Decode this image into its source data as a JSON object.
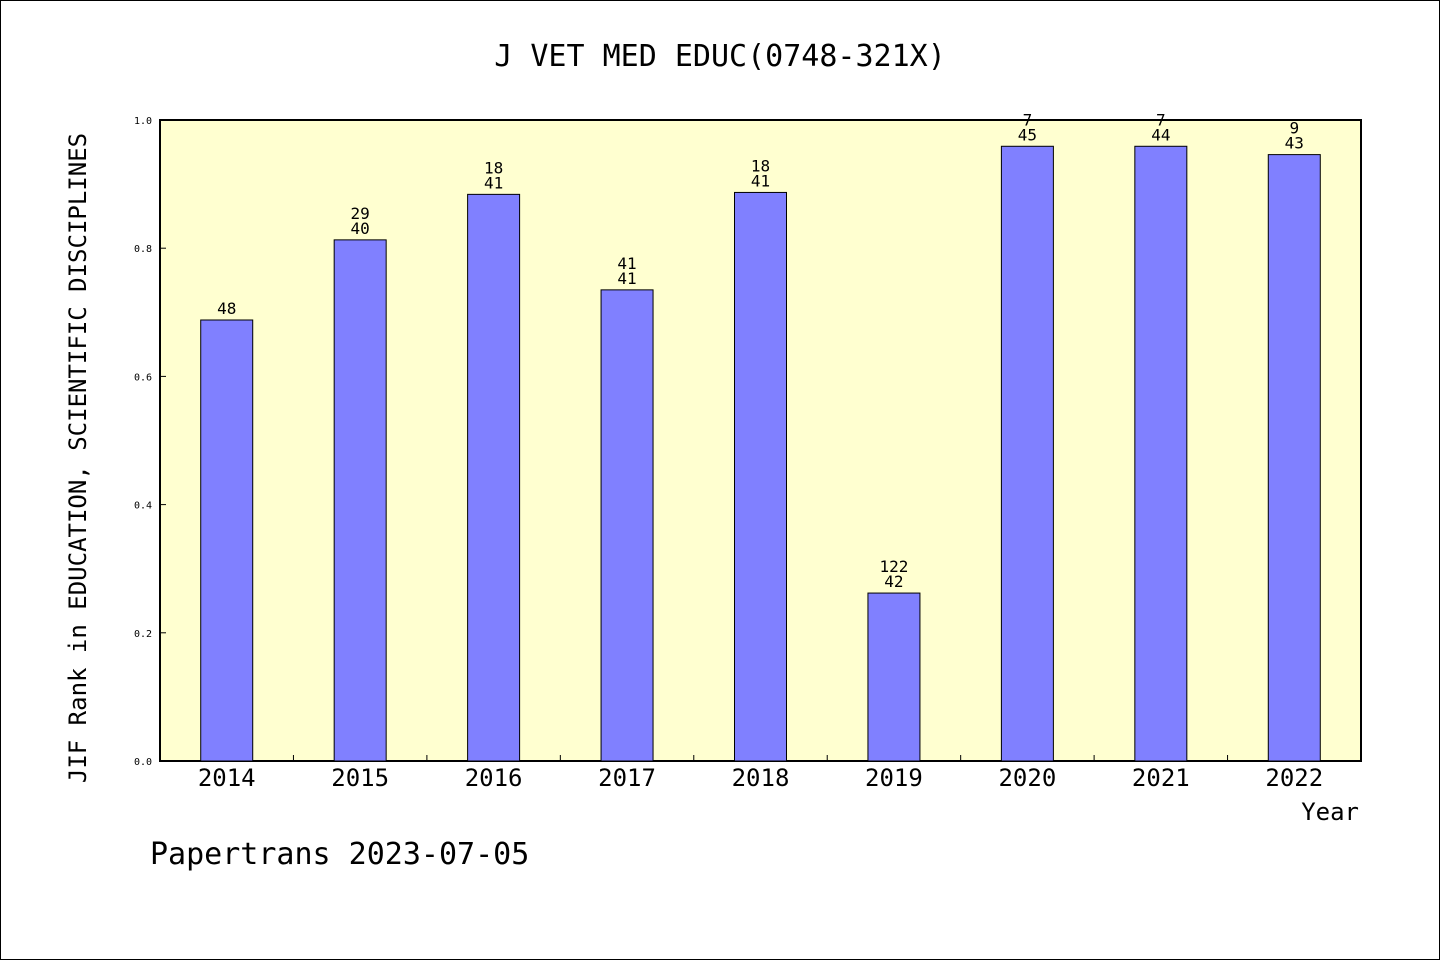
{
  "chart_data": {
    "type": "bar",
    "title": "J VET MED EDUC(0748-321X)",
    "xlabel": "Year",
    "ylabel": "JIF Rank in EDUCATION, SCIENTIFIC DISCIPLINES",
    "ylim": [
      0,
      1.0
    ],
    "yticks": [
      "0.0",
      "0.2",
      "0.4",
      "0.6",
      "0.8",
      "1.0"
    ],
    "grid": false,
    "categories": [
      "2014",
      "2015",
      "2016",
      "2017",
      "2018",
      "2019",
      "2020",
      "2021",
      "2022"
    ],
    "values": [
      0.688,
      0.813,
      0.884,
      0.735,
      0.887,
      0.262,
      0.959,
      0.959,
      0.946
    ],
    "labels_top": [
      "",
      "29",
      "18",
      "41",
      "18",
      "122",
      "7",
      "7",
      "9"
    ],
    "labels_bottom": [
      "48",
      "40",
      "41",
      "41",
      "41",
      "42",
      "45",
      "44",
      "43"
    ],
    "colors": {
      "bar": "#8080ff",
      "plot_bg": "#ffffd0",
      "page_bg": "#ffffff"
    }
  },
  "footer": "Papertrans 2023-07-05"
}
